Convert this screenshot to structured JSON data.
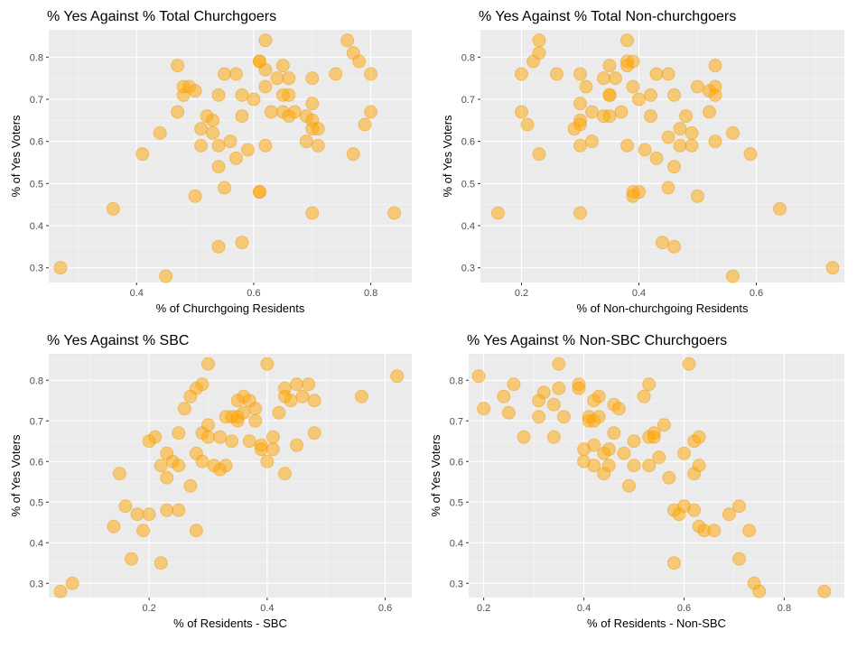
{
  "style": {
    "panel_background": "#ebebeb",
    "point_fill": "#ffa500",
    "point_stroke": "#f0a020",
    "point_opacity": 0.5
  },
  "chart_data": [
    {
      "type": "scatter",
      "title": "% Yes Against % Total Churchgoers",
      "xlabel": "% of Churchgoing Residents",
      "ylabel": "% of Yes Voters",
      "xlim": [
        0.25,
        0.87
      ],
      "ylim": [
        0.265,
        0.865
      ],
      "xticks": [
        0.4,
        0.6,
        0.8
      ],
      "xtick_labels": [
        "0.4",
        "0.6",
        "0.8"
      ],
      "yticks": [
        0.3,
        0.4,
        0.5,
        0.6,
        0.7,
        0.8
      ],
      "ytick_labels": [
        "0.3",
        "0.4",
        "0.5",
        "0.6",
        "0.7",
        "0.8"
      ],
      "grid": true,
      "x": [
        0.27,
        0.36,
        0.41,
        0.44,
        0.45,
        0.47,
        0.47,
        0.48,
        0.48,
        0.49,
        0.5,
        0.5,
        0.51,
        0.51,
        0.52,
        0.53,
        0.53,
        0.54,
        0.54,
        0.54,
        0.54,
        0.55,
        0.55,
        0.56,
        0.57,
        0.57,
        0.58,
        0.58,
        0.58,
        0.59,
        0.6,
        0.61,
        0.61,
        0.61,
        0.61,
        0.62,
        0.62,
        0.62,
        0.62,
        0.63,
        0.64,
        0.65,
        0.65,
        0.65,
        0.66,
        0.66,
        0.66,
        0.67,
        0.69,
        0.69,
        0.7,
        0.7,
        0.7,
        0.7,
        0.7,
        0.71,
        0.71,
        0.74,
        0.76,
        0.77,
        0.77,
        0.78,
        0.79,
        0.8,
        0.8,
        0.84
      ],
      "y": [
        0.3,
        0.44,
        0.57,
        0.62,
        0.28,
        0.67,
        0.78,
        0.71,
        0.73,
        0.73,
        0.72,
        0.47,
        0.59,
        0.63,
        0.66,
        0.62,
        0.65,
        0.54,
        0.59,
        0.71,
        0.35,
        0.76,
        0.49,
        0.6,
        0.56,
        0.76,
        0.36,
        0.66,
        0.71,
        0.58,
        0.7,
        0.48,
        0.48,
        0.79,
        0.79,
        0.84,
        0.77,
        0.73,
        0.59,
        0.67,
        0.75,
        0.67,
        0.71,
        0.78,
        0.66,
        0.71,
        0.75,
        0.67,
        0.66,
        0.6,
        0.43,
        0.75,
        0.69,
        0.65,
        0.63,
        0.59,
        0.63,
        0.76,
        0.84,
        0.81,
        0.57,
        0.79,
        0.64,
        0.67,
        0.76,
        0.43
      ]
    },
    {
      "type": "scatter",
      "title": "% Yes Against % Total Non-churchgoers",
      "xlabel": "% of Non-churchgoing Residents",
      "ylabel": "% of Yes Voters",
      "xlim": [
        0.13,
        0.75
      ],
      "ylim": [
        0.265,
        0.865
      ],
      "xticks": [
        0.2,
        0.4,
        0.6
      ],
      "xtick_labels": [
        "0.2",
        "0.4",
        "0.6"
      ],
      "yticks": [
        0.3,
        0.4,
        0.5,
        0.6,
        0.7,
        0.8
      ],
      "ytick_labels": [
        "0.3",
        "0.4",
        "0.5",
        "0.6",
        "0.7",
        "0.8"
      ],
      "grid": true,
      "x": [
        0.16,
        0.2,
        0.2,
        0.21,
        0.22,
        0.23,
        0.23,
        0.23,
        0.26,
        0.29,
        0.3,
        0.3,
        0.3,
        0.3,
        0.3,
        0.3,
        0.31,
        0.32,
        0.32,
        0.34,
        0.34,
        0.35,
        0.35,
        0.35,
        0.35,
        0.36,
        0.37,
        0.38,
        0.38,
        0.38,
        0.38,
        0.39,
        0.39,
        0.39,
        0.39,
        0.4,
        0.4,
        0.41,
        0.42,
        0.42,
        0.43,
        0.43,
        0.44,
        0.45,
        0.45,
        0.45,
        0.46,
        0.46,
        0.46,
        0.47,
        0.47,
        0.48,
        0.49,
        0.49,
        0.5,
        0.5,
        0.52,
        0.52,
        0.53,
        0.53,
        0.53,
        0.53,
        0.56,
        0.56,
        0.59,
        0.64,
        0.73
      ],
      "y": [
        0.43,
        0.67,
        0.76,
        0.64,
        0.79,
        0.57,
        0.84,
        0.81,
        0.76,
        0.63,
        0.69,
        0.76,
        0.65,
        0.64,
        0.59,
        0.43,
        0.73,
        0.67,
        0.6,
        0.75,
        0.66,
        0.71,
        0.78,
        0.66,
        0.71,
        0.75,
        0.67,
        0.59,
        0.78,
        0.79,
        0.84,
        0.79,
        0.73,
        0.48,
        0.47,
        0.7,
        0.48,
        0.58,
        0.66,
        0.71,
        0.76,
        0.56,
        0.36,
        0.76,
        0.61,
        0.49,
        0.71,
        0.35,
        0.54,
        0.63,
        0.59,
        0.66,
        0.62,
        0.59,
        0.47,
        0.73,
        0.72,
        0.67,
        0.78,
        0.71,
        0.73,
        0.6,
        0.62,
        0.28,
        0.57,
        0.44,
        0.3
      ]
    },
    {
      "type": "scatter",
      "title": "% Yes Against % SBC",
      "xlabel": "% of Residents - SBC",
      "ylabel": "% of Yes Voters",
      "xlim": [
        0.03,
        0.645
      ],
      "ylim": [
        0.265,
        0.865
      ],
      "xticks": [
        0.2,
        0.4,
        0.6
      ],
      "xtick_labels": [
        "0.2",
        "0.4",
        "0.6"
      ],
      "yticks": [
        0.3,
        0.4,
        0.5,
        0.6,
        0.7,
        0.8
      ],
      "ytick_labels": [
        "0.3",
        "0.4",
        "0.5",
        "0.6",
        "0.7",
        "0.8"
      ],
      "grid": true,
      "x": [
        0.05,
        0.07,
        0.14,
        0.15,
        0.16,
        0.17,
        0.18,
        0.19,
        0.2,
        0.2,
        0.21,
        0.22,
        0.22,
        0.23,
        0.23,
        0.23,
        0.24,
        0.25,
        0.25,
        0.25,
        0.26,
        0.27,
        0.27,
        0.28,
        0.28,
        0.28,
        0.29,
        0.29,
        0.29,
        0.3,
        0.3,
        0.3,
        0.31,
        0.32,
        0.32,
        0.33,
        0.33,
        0.34,
        0.34,
        0.35,
        0.35,
        0.35,
        0.36,
        0.36,
        0.37,
        0.37,
        0.38,
        0.38,
        0.39,
        0.39,
        0.4,
        0.4,
        0.41,
        0.41,
        0.42,
        0.43,
        0.43,
        0.43,
        0.44,
        0.45,
        0.45,
        0.46,
        0.47,
        0.48,
        0.48,
        0.56,
        0.62
      ],
      "y": [
        0.28,
        0.3,
        0.44,
        0.57,
        0.49,
        0.36,
        0.47,
        0.43,
        0.47,
        0.65,
        0.66,
        0.59,
        0.35,
        0.62,
        0.48,
        0.56,
        0.6,
        0.59,
        0.67,
        0.48,
        0.73,
        0.54,
        0.76,
        0.62,
        0.43,
        0.78,
        0.79,
        0.6,
        0.67,
        0.84,
        0.69,
        0.66,
        0.59,
        0.66,
        0.58,
        0.59,
        0.71,
        0.65,
        0.71,
        0.75,
        0.7,
        0.71,
        0.76,
        0.72,
        0.75,
        0.65,
        0.7,
        0.73,
        0.64,
        0.63,
        0.84,
        0.6,
        0.63,
        0.66,
        0.72,
        0.57,
        0.76,
        0.78,
        0.75,
        0.64,
        0.79,
        0.76,
        0.79,
        0.75,
        0.67,
        0.76,
        0.81
      ]
    },
    {
      "type": "scatter",
      "title": "% Yes Against % Non-SBC Churchgoers",
      "xlabel": "% of Residents - Non-SBC",
      "ylabel": "% of Yes Voters",
      "xlim": [
        0.17,
        0.92
      ],
      "ylim": [
        0.265,
        0.865
      ],
      "xticks": [
        0.2,
        0.4,
        0.6,
        0.8
      ],
      "xtick_labels": [
        "0.2",
        "0.4",
        "0.6",
        "0.8"
      ],
      "yticks": [
        0.3,
        0.4,
        0.5,
        0.6,
        0.7,
        0.8
      ],
      "ytick_labels": [
        "0.3",
        "0.4",
        "0.5",
        "0.6",
        "0.7",
        "0.8"
      ],
      "grid": true,
      "x": [
        0.19,
        0.2,
        0.24,
        0.25,
        0.26,
        0.28,
        0.31,
        0.31,
        0.32,
        0.34,
        0.34,
        0.35,
        0.35,
        0.36,
        0.39,
        0.39,
        0.4,
        0.4,
        0.41,
        0.41,
        0.42,
        0.42,
        0.42,
        0.42,
        0.43,
        0.43,
        0.44,
        0.44,
        0.45,
        0.45,
        0.46,
        0.46,
        0.47,
        0.48,
        0.49,
        0.5,
        0.5,
        0.52,
        0.53,
        0.53,
        0.53,
        0.54,
        0.54,
        0.55,
        0.56,
        0.57,
        0.58,
        0.58,
        0.59,
        0.6,
        0.6,
        0.61,
        0.62,
        0.62,
        0.62,
        0.63,
        0.63,
        0.63,
        0.64,
        0.66,
        0.69,
        0.71,
        0.71,
        0.73,
        0.74,
        0.75,
        0.88
      ],
      "y": [
        0.81,
        0.73,
        0.76,
        0.72,
        0.79,
        0.66,
        0.75,
        0.71,
        0.77,
        0.74,
        0.66,
        0.84,
        0.78,
        0.71,
        0.79,
        0.78,
        0.63,
        0.6,
        0.7,
        0.71,
        0.75,
        0.64,
        0.59,
        0.7,
        0.76,
        0.71,
        0.62,
        0.57,
        0.63,
        0.59,
        0.74,
        0.67,
        0.73,
        0.62,
        0.54,
        0.59,
        0.65,
        0.76,
        0.59,
        0.66,
        0.79,
        0.67,
        0.66,
        0.61,
        0.69,
        0.56,
        0.48,
        0.35,
        0.47,
        0.49,
        0.62,
        0.84,
        0.48,
        0.65,
        0.57,
        0.44,
        0.66,
        0.59,
        0.43,
        0.43,
        0.47,
        0.49,
        0.36,
        0.43,
        0.3,
        0.28,
        0.28
      ]
    }
  ]
}
